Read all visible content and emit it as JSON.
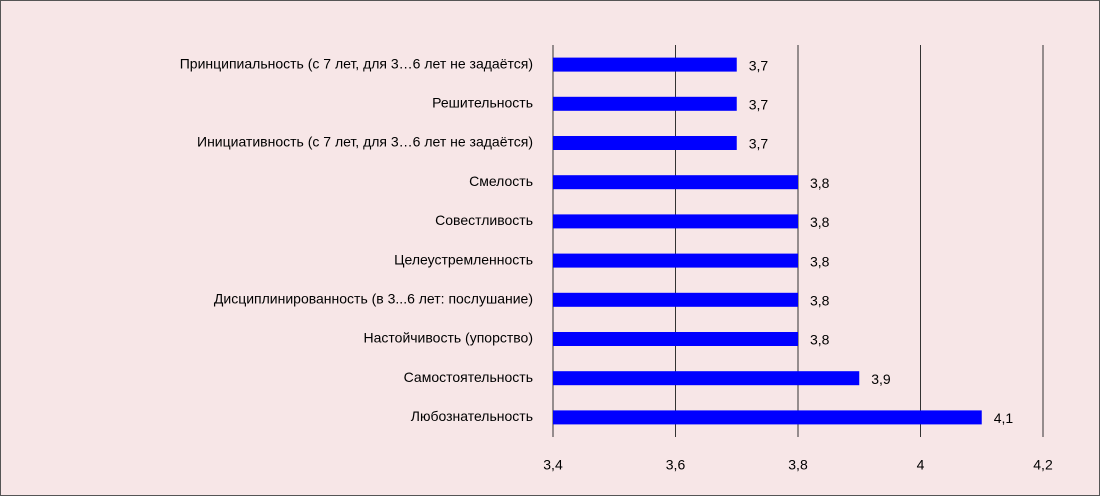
{
  "chart_data": {
    "type": "bar",
    "orientation": "horizontal",
    "categories": [
      "Принципиальность (с 7 лет, для 3…6 лет не задаётся)",
      "Решительность",
      "Инициативность (с 7 лет, для 3…6 лет не задаётся)",
      "Смелость",
      "Совестливость",
      "Целеустремленность",
      "Дисциплинированность (в 3...6 лет: послушание)",
      "Настойчивость (упорство)",
      "Самостоятельность",
      "Любознательность"
    ],
    "values": [
      3.7,
      3.7,
      3.7,
      3.8,
      3.8,
      3.8,
      3.8,
      3.8,
      3.9,
      4.1
    ],
    "value_labels": [
      "3,7",
      "3,7",
      "3,7",
      "3,8",
      "3,8",
      "3,8",
      "3,8",
      "3,8",
      "3,9",
      "4,1"
    ],
    "color": "#0000ff",
    "xlim": [
      3.4,
      4.2
    ],
    "xticks": [
      {
        "value": 3.4,
        "label": "3,4"
      },
      {
        "value": 3.6,
        "label": "3,6"
      },
      {
        "value": 3.8,
        "label": "3,8"
      },
      4,
      {
        "value": 4.2,
        "label": "4,2"
      }
    ],
    "grid": true
  }
}
